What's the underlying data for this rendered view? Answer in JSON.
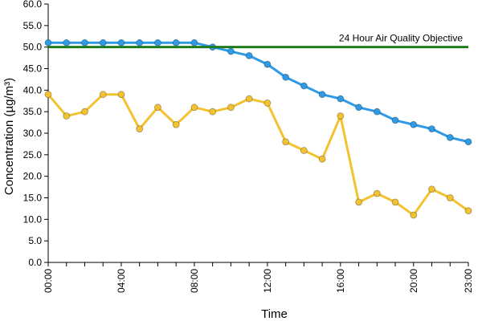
{
  "chart_data": {
    "type": "line",
    "xlabel": "Time",
    "ylabel": "Concentration (µg/m³)",
    "ylim": [
      0,
      60
    ],
    "y_tick_step": 5,
    "y_tick_labels": [
      "0.0",
      "5.0",
      "10.0",
      "15.0",
      "20.0",
      "25.0",
      "30.0",
      "35.0",
      "40.0",
      "45.0",
      "50.0",
      "55.0",
      "60.0"
    ],
    "x": [
      0,
      1,
      2,
      3,
      4,
      5,
      6,
      7,
      8,
      9,
      10,
      11,
      12,
      13,
      14,
      15,
      16,
      17,
      18,
      19,
      20,
      21,
      22,
      23
    ],
    "x_tick_labels": [
      "00:00",
      "04:00",
      "08:00",
      "12:00",
      "16:00",
      "20:00",
      "23:00"
    ],
    "x_tick_hours": [
      0,
      4,
      8,
      12,
      16,
      20,
      23
    ],
    "grid": false,
    "series": [
      {
        "color": "#2F9BE6",
        "values": [
          51,
          51,
          51,
          51,
          51,
          51,
          51,
          51,
          51,
          50,
          49,
          48,
          46,
          43,
          41,
          39,
          38,
          36,
          35,
          33,
          32,
          31,
          29,
          28
        ]
      },
      {
        "color": "#F2C230",
        "values": [
          39,
          34,
          35,
          39,
          39,
          31,
          36,
          32,
          36,
          35,
          36,
          38,
          37,
          28,
          26,
          24,
          34,
          14,
          16,
          14,
          11,
          17,
          15,
          12
        ]
      }
    ],
    "reference_line": {
      "label": "24 Hour Air Quality Objective",
      "value": 50,
      "color": "#1E7B1E"
    }
  }
}
